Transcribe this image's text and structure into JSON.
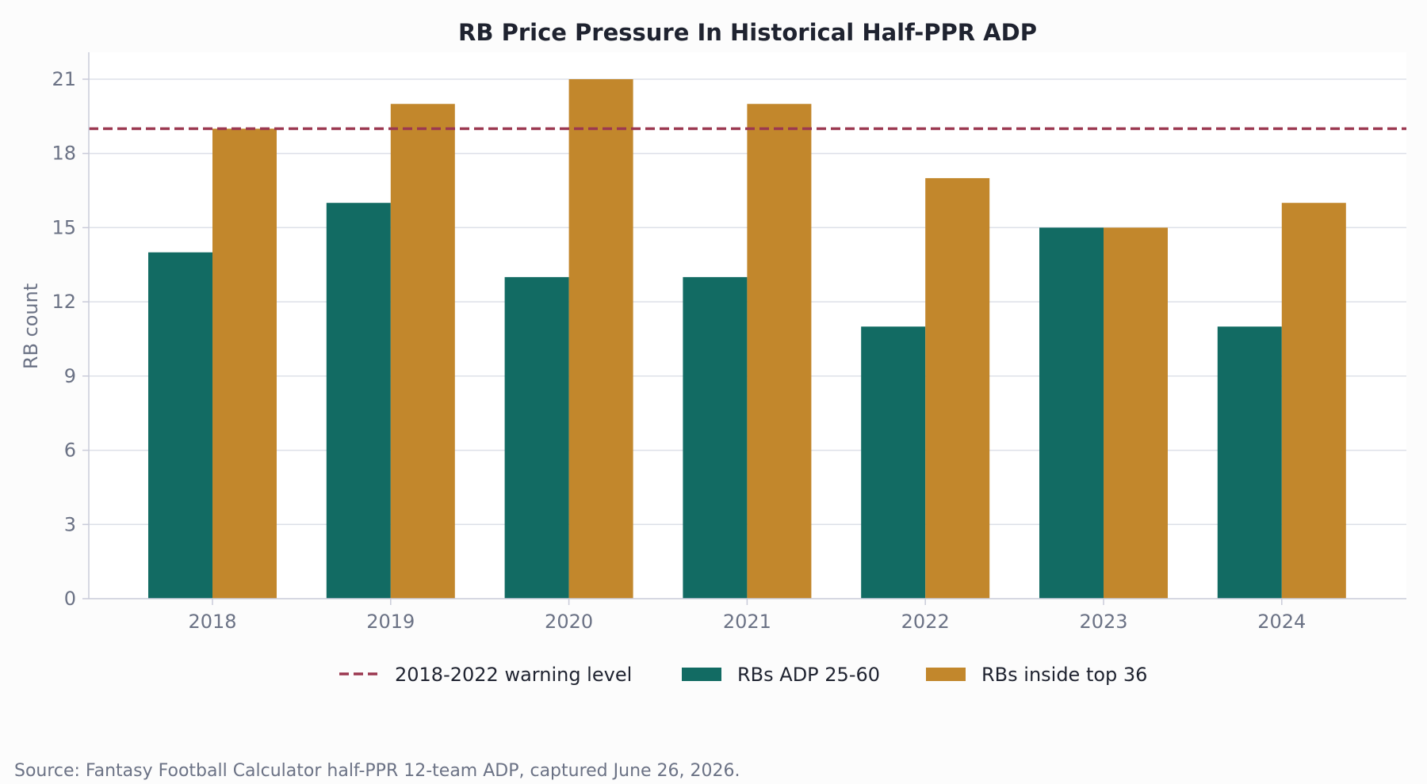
{
  "chart_data": {
    "type": "bar",
    "title": "RB Price Pressure In Historical Half-PPR ADP",
    "xlabel": "",
    "ylabel": "RB count",
    "categories": [
      "2018",
      "2019",
      "2020",
      "2021",
      "2022",
      "2023",
      "2024"
    ],
    "series": [
      {
        "name": "RBs ADP 25-60",
        "color": "#126b63",
        "values": [
          14,
          16,
          13,
          13,
          11,
          15,
          11
        ]
      },
      {
        "name": "RBs inside top 36",
        "color": "#c2872c",
        "values": [
          19,
          20,
          21,
          20,
          17,
          15,
          16
        ]
      }
    ],
    "reference_line": {
      "name": "2018-2022 warning level",
      "value": 19,
      "color": "#9b3850",
      "style": "dashed"
    },
    "ylim": [
      0,
      21
    ],
    "yticks": [
      0,
      3,
      6,
      9,
      12,
      15,
      18,
      21
    ],
    "grid": "horizontal",
    "legend_position": "bottom-center"
  },
  "source_note": "Source: Fantasy Football Calculator half-PPR 12-team ADP, captured June 26, 2026."
}
